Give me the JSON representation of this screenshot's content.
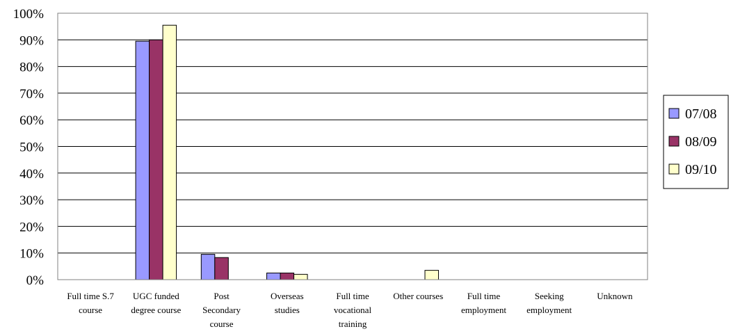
{
  "chart_data": {
    "type": "bar",
    "title": "",
    "xlabel": "",
    "ylabel": "",
    "ylim": [
      0,
      100
    ],
    "y_ticks": [
      "0%",
      "10%",
      "20%",
      "30%",
      "40%",
      "50%",
      "60%",
      "70%",
      "80%",
      "90%",
      "100%"
    ],
    "grid": true,
    "legend_position": "right",
    "categories": [
      [
        "Full time S.7",
        "course"
      ],
      [
        "UGC funded",
        "degree course"
      ],
      [
        "Post",
        "Secondary",
        "course"
      ],
      [
        "Overseas",
        "studies"
      ],
      [
        "Full time",
        "vocational",
        "training"
      ],
      [
        "Other courses"
      ],
      [
        "Full time",
        "employment"
      ],
      [
        "Seeking",
        "employment"
      ],
      [
        "Unknown"
      ]
    ],
    "series": [
      {
        "name": "07/08",
        "color": "#9999ff",
        "values": [
          0,
          89.5,
          9.5,
          2.5,
          0,
          0,
          0,
          0,
          0
        ]
      },
      {
        "name": "08/09",
        "color": "#993366",
        "values": [
          0,
          90,
          8.3,
          2.5,
          0,
          0,
          0,
          0,
          0
        ]
      },
      {
        "name": "09/10",
        "color": "#ffffcc",
        "values": [
          0,
          95.5,
          0,
          2,
          0,
          3.5,
          0,
          0,
          0
        ]
      }
    ]
  }
}
